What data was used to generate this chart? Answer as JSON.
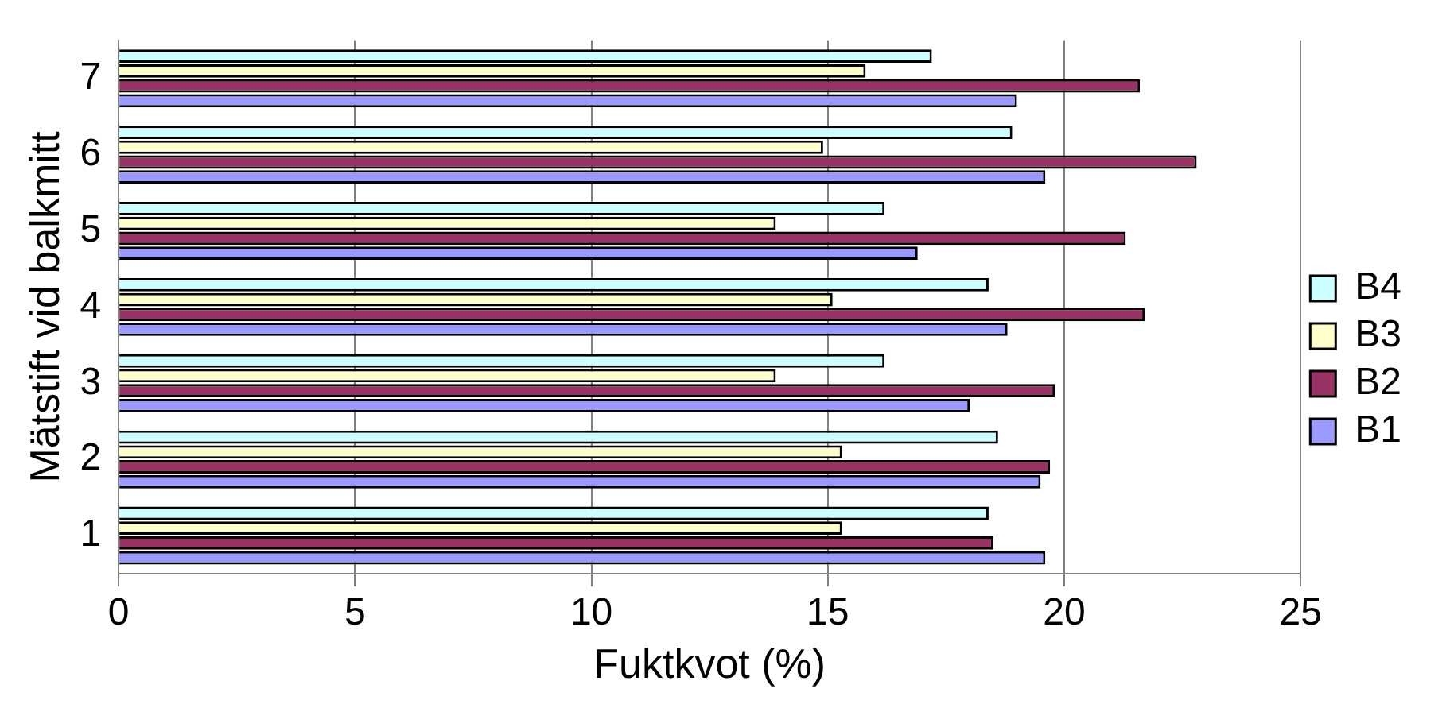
{
  "chart_data": {
    "type": "bar",
    "orientation": "horizontal",
    "xlabel": "Fuktkvot (%)",
    "ylabel": "Mätstift vid balkmitt",
    "categories": [
      "7",
      "6",
      "5",
      "4",
      "3",
      "2",
      "1"
    ],
    "series": [
      {
        "name": "B4",
        "color": "#ccffff",
        "values": [
          17.2,
          18.9,
          16.2,
          18.4,
          16.2,
          18.6,
          18.4
        ]
      },
      {
        "name": "B3",
        "color": "#ffffcc",
        "values": [
          15.8,
          14.9,
          13.9,
          15.1,
          13.9,
          15.3,
          15.3
        ]
      },
      {
        "name": "B2",
        "color": "#993366",
        "values": [
          21.6,
          22.8,
          21.3,
          21.7,
          19.8,
          19.7,
          18.5
        ]
      },
      {
        "name": "B1",
        "color": "#9999ff",
        "values": [
          19.0,
          19.6,
          16.9,
          18.8,
          18.0,
          19.5,
          19.6
        ]
      }
    ],
    "xlim": [
      0,
      25
    ],
    "xticks": [
      0,
      5,
      10,
      15,
      20,
      25
    ],
    "grid": "x",
    "legend": "right"
  }
}
